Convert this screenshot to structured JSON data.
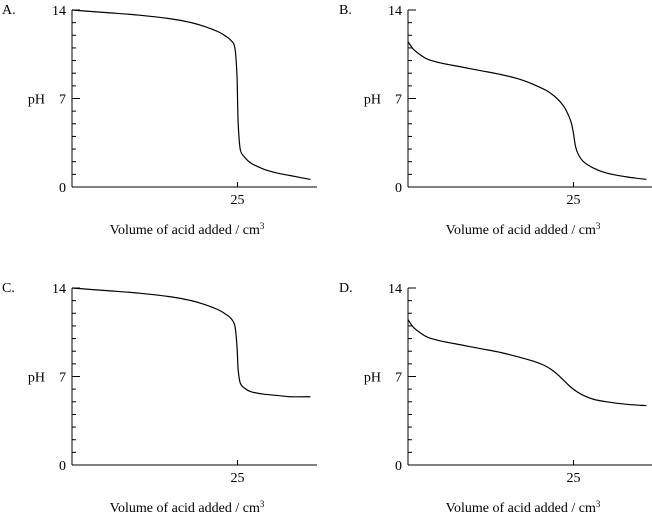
{
  "chart_data": [
    {
      "type": "line",
      "panel_label": "A.",
      "xlabel": "Volume of acid added / cm",
      "xlabel_sup": "3",
      "ylabel": "pH",
      "yticks": [
        "0",
        "7",
        "14"
      ],
      "xticks": [
        "25"
      ],
      "xlim": [
        0,
        37
      ],
      "ylim": [
        0,
        14
      ],
      "x": [
        0,
        5,
        10,
        15,
        18,
        20,
        22,
        23,
        24,
        24.6,
        24.9,
        25,
        25.1,
        25.4,
        26,
        27,
        29,
        31,
        33,
        36
      ],
      "y": [
        14,
        13.8,
        13.6,
        13.3,
        13.0,
        12.7,
        12.3,
        12.0,
        11.6,
        11.0,
        9.0,
        7.0,
        5.0,
        3.0,
        2.4,
        1.9,
        1.4,
        1.1,
        0.9,
        0.6
      ]
    },
    {
      "type": "line",
      "panel_label": "B.",
      "xlabel": "Volume of acid added / cm",
      "xlabel_sup": "3",
      "ylabel": "pH",
      "yticks": [
        "0",
        "7",
        "14"
      ],
      "xticks": [
        "25"
      ],
      "xlim": [
        0,
        37
      ],
      "ylim": [
        0,
        14
      ],
      "x": [
        0,
        0.5,
        1,
        2,
        3,
        5,
        8,
        11,
        14,
        17,
        19,
        21,
        22.5,
        23.5,
        24.3,
        24.7,
        25,
        25.3,
        25.7,
        26.5,
        28,
        30,
        33,
        36
      ],
      "y": [
        11.5,
        11.1,
        10.8,
        10.4,
        10.1,
        9.8,
        9.5,
        9.2,
        8.9,
        8.5,
        8.1,
        7.6,
        7.0,
        6.4,
        5.6,
        5.0,
        4.2,
        3.2,
        2.6,
        2.0,
        1.5,
        1.1,
        0.8,
        0.6
      ]
    },
    {
      "type": "line",
      "panel_label": "C.",
      "xlabel": "Volume of acid added / cm",
      "xlabel_sup": "3",
      "ylabel": "pH",
      "yticks": [
        "0",
        "7",
        "14"
      ],
      "xticks": [
        "25"
      ],
      "xlim": [
        0,
        37
      ],
      "ylim": [
        0,
        14
      ],
      "x": [
        0,
        5,
        10,
        15,
        18,
        20,
        22,
        23,
        24,
        24.6,
        24.9,
        25,
        25.1,
        25.4,
        26,
        27,
        29,
        31,
        33,
        36
      ],
      "y": [
        14,
        13.8,
        13.6,
        13.3,
        13.0,
        12.7,
        12.3,
        12.0,
        11.6,
        11.0,
        9.5,
        8.5,
        7.5,
        6.5,
        6.1,
        5.8,
        5.6,
        5.5,
        5.4,
        5.4
      ]
    },
    {
      "type": "line",
      "panel_label": "D.",
      "xlabel": "Volume of acid added / cm",
      "xlabel_sup": "3",
      "ylabel": "pH",
      "yticks": [
        "0",
        "7",
        "14"
      ],
      "xticks": [
        "25"
      ],
      "xlim": [
        0,
        37
      ],
      "ylim": [
        0,
        14
      ],
      "x": [
        0,
        0.5,
        1,
        2,
        3,
        5,
        8,
        11,
        14,
        17,
        19,
        20.5,
        21.5,
        22.5,
        23.5,
        24.5,
        25.5,
        26.5,
        28,
        30,
        33,
        36
      ],
      "y": [
        11.5,
        11.1,
        10.8,
        10.4,
        10.1,
        9.8,
        9.5,
        9.2,
        8.9,
        8.5,
        8.2,
        7.9,
        7.6,
        7.2,
        6.7,
        6.2,
        5.8,
        5.5,
        5.2,
        5.0,
        4.8,
        4.7
      ]
    }
  ]
}
